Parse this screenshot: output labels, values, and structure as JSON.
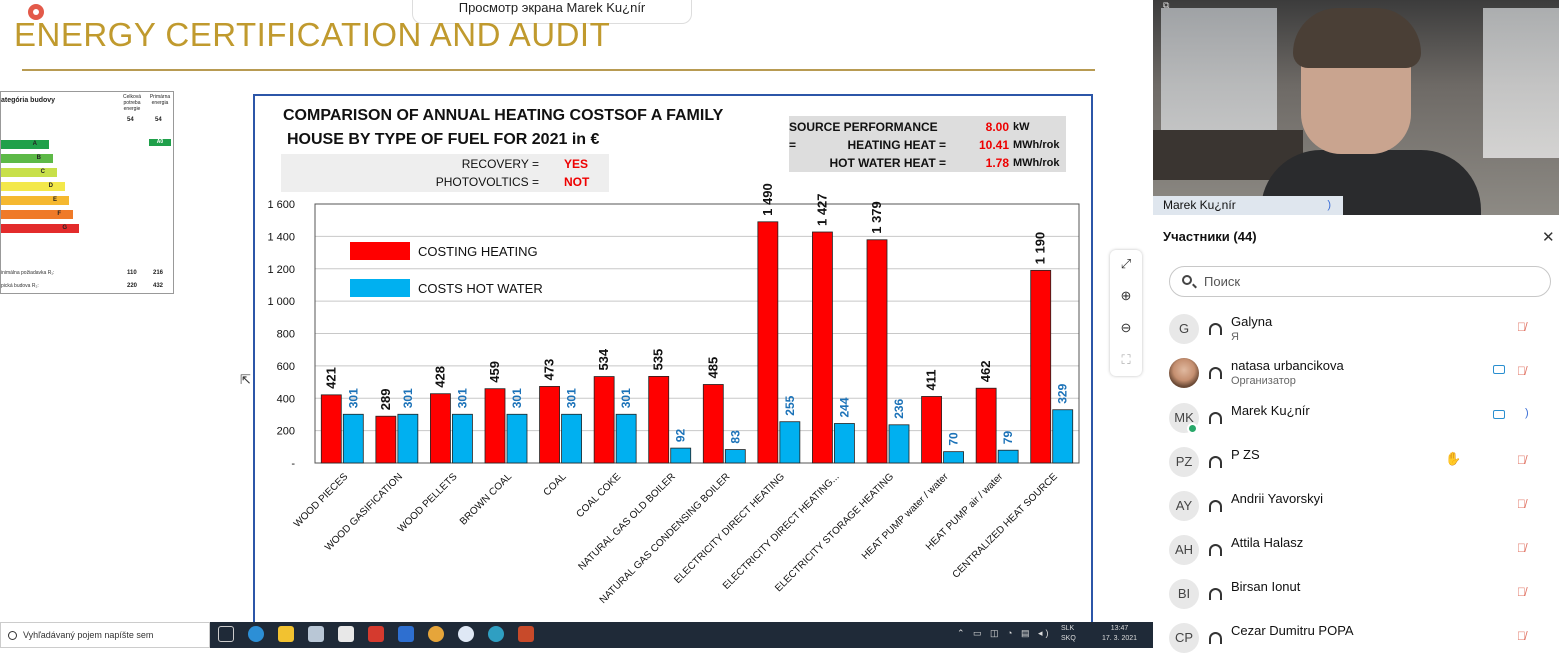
{
  "window": {
    "share_label": "Просмотр экрана Marek Ku¿nír"
  },
  "slide": {
    "title": "ENERGY CERTIFICATION AND AUDIT"
  },
  "energy_card": {
    "heading": "ategória budovy",
    "col1": "Celková potreba energie",
    "col2": "Primárna energia",
    "classes": [
      "A",
      "B",
      "C",
      "D",
      "E",
      "F",
      "G"
    ],
    "row_min_label": "inimálna požiadavka R₁:",
    "row_min_values": [
      "110",
      "216"
    ],
    "row_typ_label": "pická budova R₂:",
    "row_typ_values": [
      "220",
      "432"
    ],
    "small_values": [
      "54",
      "54"
    ],
    "highlight": "A0"
  },
  "info": {
    "source_label": "SOURCE PERFORMANCE =",
    "source_value": "8.00",
    "source_unit": "kW",
    "heating_label": "HEATING HEAT =",
    "heating_value": "10.41",
    "heating_unit": "MWh/rok",
    "hw_label": "HOT WATER HEAT =",
    "hw_value": "1.78",
    "hw_unit": "MWh/rok",
    "recovery_label": "RECOVERY =",
    "recovery_value": "YES",
    "pv_label": "PHOTOVOLTICS =",
    "pv_value": "NOT"
  },
  "chart_data": {
    "type": "bar",
    "title": "COMPARISON OF ANNUAL HEATING COSTSOF A FAMILY HOUSE BY TYPE OF FUEL FOR 2021 in €",
    "title_line1": "COMPARISON OF ANNUAL HEATING COSTSOF A FAMILY",
    "title_line2": "HOUSE BY TYPE OF FUEL FOR 2021 in €",
    "categories": [
      "WOOD PIECES",
      "WOOD GASIFICATION",
      "WOOD PELLETS",
      "BROWN COAL",
      "COAL",
      "COAL COKE",
      "NATURAL GAS OLD BOILER",
      "NATURAL GAS CONDENSING BOILER",
      "ELECTRICITY DIRECT HEATING",
      "ELECTRICITY DIRECT HEATING...",
      "ELECTRICITY STORAGE HEATING",
      "HEAT PUMP water / water",
      "HEAT PUMP air / water",
      "CENTRALIZED HEAT SOURCE"
    ],
    "series": [
      {
        "name": "COSTING HEATING",
        "color": "#ff0000",
        "values": [
          421,
          289,
          428,
          459,
          473,
          534,
          535,
          485,
          1490,
          1427,
          1379,
          411,
          462,
          1190
        ],
        "labels": [
          "421",
          "289",
          "428",
          "459",
          "473",
          "534",
          "535",
          "485",
          "1 490",
          "1 427",
          "1 379",
          "411",
          "462",
          "1 190"
        ]
      },
      {
        "name": "COSTS HOT WATER",
        "color": "#00b0f0",
        "values": [
          301,
          301,
          301,
          301,
          301,
          301,
          92,
          83,
          255,
          244,
          236,
          70,
          79,
          329
        ],
        "labels": [
          "301",
          "301",
          "301",
          "301",
          "301",
          "301",
          "92",
          "83",
          "255",
          "244",
          "236",
          "70",
          "79",
          "329"
        ]
      }
    ],
    "ylim": [
      0,
      1600
    ],
    "yticks": [
      0,
      200,
      400,
      600,
      800,
      1000,
      1200,
      1400,
      1600
    ],
    "ytick_labels": [
      "-",
      "200",
      "400",
      "600",
      "800",
      "1 000",
      "1 200",
      "1 400",
      "1 600"
    ],
    "legend": "top-left",
    "grid": true
  },
  "taskbar": {
    "search_placeholder": "Vyhľadávaný pojem napíšte sem",
    "lang1": "SLK",
    "lang2": "SKQ",
    "time": "13:47",
    "date": "17. 3. 2021"
  },
  "video": {
    "name": "Marek Ku¿nír"
  },
  "participants": {
    "title": "Участники (44)",
    "search_placeholder": "Поиск",
    "list": [
      {
        "initials": "G",
        "name": "Galyna",
        "role": "Я"
      },
      {
        "initials": "",
        "name": "natasa urbancikova",
        "role": "Организатор"
      },
      {
        "initials": "MK",
        "name": "Marek Ku¿nír",
        "role": ""
      },
      {
        "initials": "PZ",
        "name": "P ZS",
        "role": ""
      },
      {
        "initials": "AY",
        "name": "Andrii Yavorskyi",
        "role": ""
      },
      {
        "initials": "AH",
        "name": "Attila Halasz",
        "role": ""
      },
      {
        "initials": "BI",
        "name": "Birsan Ionut",
        "role": ""
      },
      {
        "initials": "CP",
        "name": "Cezar Dumitru POPA",
        "role": ""
      }
    ]
  }
}
